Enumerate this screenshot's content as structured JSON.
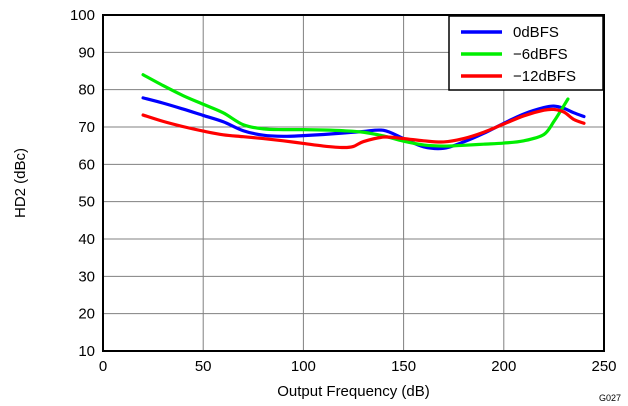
{
  "chart_data": {
    "type": "line",
    "title": "",
    "xlabel": "Output Frequency (dB)",
    "ylabel": "HD2 (dBc)",
    "xlim": [
      0,
      250
    ],
    "ylim": [
      10,
      100
    ],
    "xticks": [
      "0",
      "50",
      "100",
      "150",
      "200",
      "250"
    ],
    "yticks": [
      "10",
      "20",
      "30",
      "40",
      "50",
      "60",
      "70",
      "80",
      "90",
      "100"
    ],
    "grid": true,
    "legend_position": "top-right",
    "figure_tag": "G027",
    "series": [
      {
        "name": "0dBFS",
        "color": "#0000ff",
        "x": [
          20,
          30,
          40,
          50,
          60,
          70,
          80,
          90,
          100,
          110,
          120,
          130,
          140,
          150,
          160,
          170,
          180,
          190,
          200,
          210,
          220,
          225,
          230,
          235,
          240
        ],
        "y": [
          77.8,
          76.4,
          74.8,
          73.1,
          71.4,
          69.0,
          67.8,
          67.5,
          67.7,
          68.0,
          68.4,
          68.8,
          69.1,
          66.9,
          64.7,
          64.3,
          66.0,
          68.3,
          71.0,
          73.5,
          75.2,
          75.6,
          75.0,
          73.8,
          72.8
        ]
      },
      {
        "name": "−6dBFS",
        "color": "#00ee00",
        "x": [
          20,
          30,
          40,
          50,
          60,
          70,
          80,
          90,
          100,
          110,
          120,
          130,
          140,
          150,
          160,
          170,
          180,
          190,
          200,
          210,
          220,
          225,
          228,
          232
        ],
        "y": [
          84.0,
          81.1,
          78.4,
          76.1,
          73.8,
          70.6,
          69.5,
          69.3,
          69.3,
          69.2,
          69.0,
          68.6,
          67.6,
          66.2,
          65.2,
          64.9,
          65.1,
          65.4,
          65.7,
          66.3,
          68.0,
          71.5,
          74.0,
          77.5
        ]
      },
      {
        "name": "−12dBFS",
        "color": "#ff0000",
        "x": [
          20,
          30,
          40,
          50,
          60,
          70,
          80,
          90,
          100,
          110,
          120,
          125,
          130,
          140,
          150,
          160,
          170,
          180,
          190,
          200,
          210,
          220,
          225,
          230,
          235,
          240
        ],
        "y": [
          73.2,
          71.5,
          70.1,
          68.9,
          67.9,
          67.4,
          66.9,
          66.3,
          65.6,
          64.9,
          64.5,
          64.8,
          66.1,
          67.3,
          66.9,
          66.3,
          66.0,
          66.9,
          68.6,
          70.8,
          73.0,
          74.5,
          74.7,
          74.0,
          72.0,
          71.0
        ]
      }
    ]
  }
}
